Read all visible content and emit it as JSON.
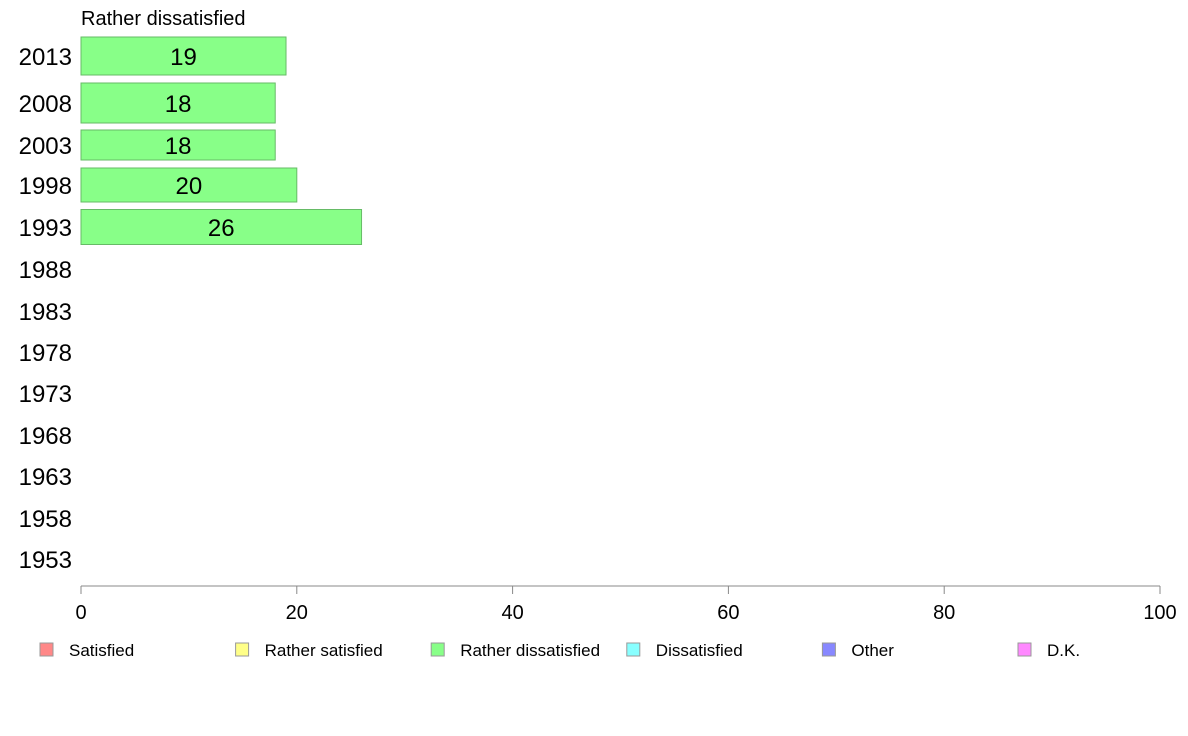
{
  "chart_data": {
    "type": "bar",
    "orientation": "horizontal",
    "title": "Rather dissatisfied",
    "categories": [
      "2013",
      "2008",
      "2003",
      "1998",
      "1993",
      "1988",
      "1983",
      "1978",
      "1973",
      "1968",
      "1963",
      "1958",
      "1953"
    ],
    "series": [
      {
        "name": "Rather dissatisfied",
        "color": "#88ff88",
        "values": [
          19,
          18,
          18,
          20,
          26,
          null,
          null,
          null,
          null,
          null,
          null,
          null,
          null
        ]
      }
    ],
    "xlim": [
      0,
      100
    ],
    "xticks": [
      0,
      20,
      40,
      60,
      80,
      100
    ],
    "grid": false,
    "legend_position": "bottom",
    "legend": [
      {
        "label": "Satisfied",
        "color": "#ff8888"
      },
      {
        "label": "Rather satisfied",
        "color": "#ffff88"
      },
      {
        "label": "Rather dissatisfied",
        "color": "#88ff88"
      },
      {
        "label": "Dissatisfied",
        "color": "#88ffff"
      },
      {
        "label": "Other",
        "color": "#8888ff"
      },
      {
        "label": "D.K.",
        "color": "#ff88ff"
      }
    ]
  }
}
